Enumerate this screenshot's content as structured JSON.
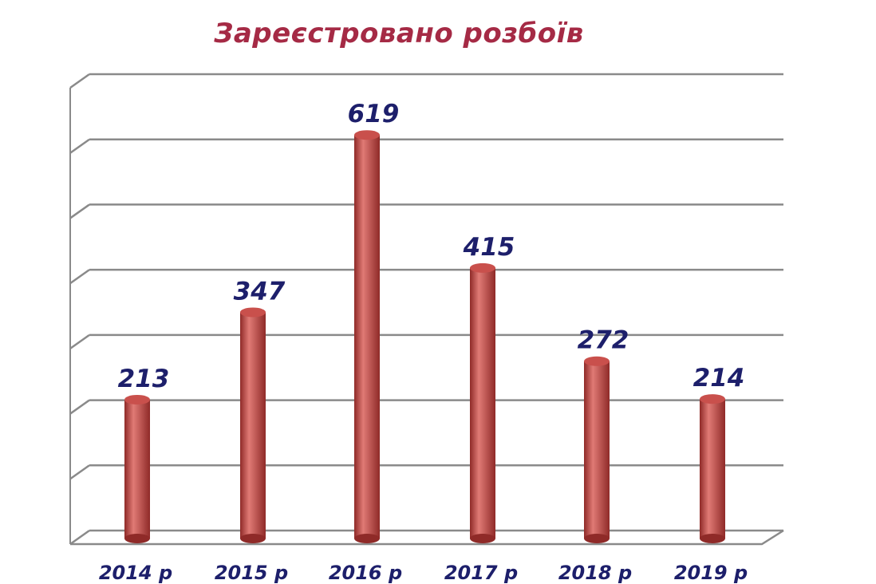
{
  "chart_data": {
    "type": "bar",
    "title": "Зареєстровано розбоїв",
    "categories": [
      "2014 р",
      "2015 р",
      "2016 р",
      "2017 р",
      "2018 р",
      "2019 р"
    ],
    "values": [
      213,
      347,
      619,
      415,
      272,
      214
    ],
    "xlabel": "",
    "ylabel": "",
    "ylim": [
      0,
      700
    ],
    "grid": true,
    "colors": {
      "bar": "#c9504c",
      "bar_dark": "#8f2a28",
      "bar_light": "#e07a75",
      "title": "#a52a45",
      "labels": "#1d1f6b",
      "grid": "#8a8a8a"
    }
  }
}
